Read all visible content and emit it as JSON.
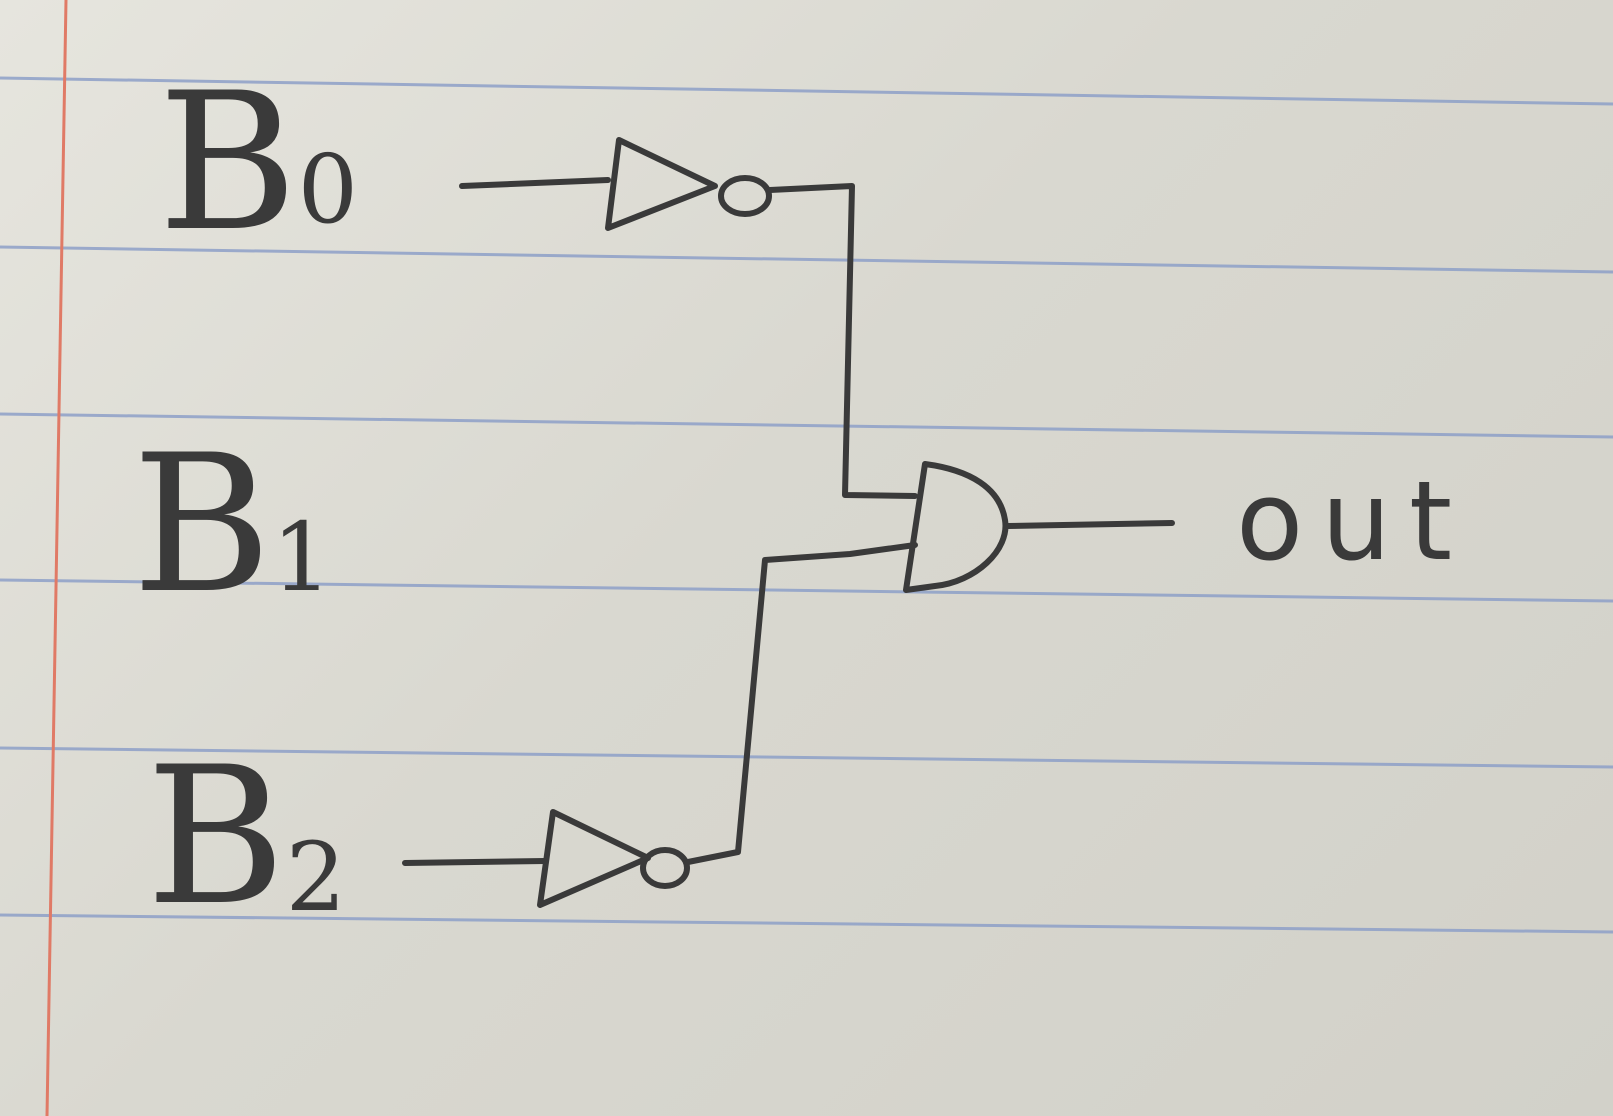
{
  "diagram": {
    "inputs": [
      {
        "letter": "B",
        "subscript": "0"
      },
      {
        "letter": "B",
        "subscript": "1"
      },
      {
        "letter": "B",
        "subscript": "2"
      }
    ],
    "output_label": "out",
    "gates": [
      {
        "type": "NOT",
        "input": "B0"
      },
      {
        "type": "NOT",
        "input": "B2"
      },
      {
        "type": "AND",
        "inputs": [
          "NOT B0",
          "NOT B2"
        ],
        "output": "out"
      }
    ],
    "colors": {
      "paper": "#dcdbd3",
      "ink": "#3a3a3a",
      "rule": "#8ea0c8",
      "margin": "#e07a66"
    }
  }
}
